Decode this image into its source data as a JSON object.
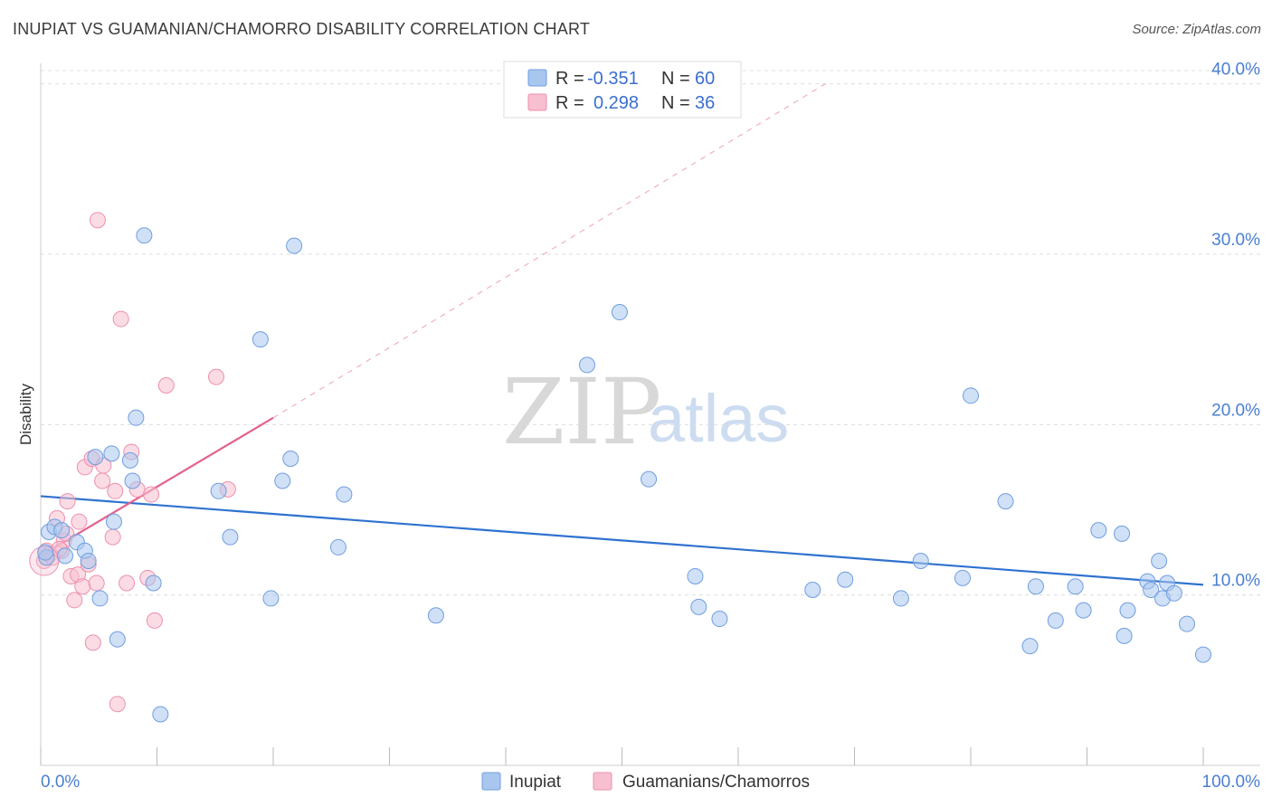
{
  "title": "INUPIAT VS GUAMANIAN/CHAMORRO DISABILITY CORRELATION CHART",
  "source": "Source: ZipAtlas.com",
  "watermark": {
    "zip": "ZIP",
    "atlas": "atlas"
  },
  "colors": {
    "blue_fill": "#a9c6ef",
    "blue_stroke": "#6f9ee0",
    "blue_line": "#2f72d0",
    "pink_fill": "#f7bfd0",
    "pink_stroke": "#ee8fae",
    "pink_line": "#e3628e",
    "grid": "#dddddd",
    "axis_text": "#4a7fd0"
  },
  "legend": {
    "rows": [
      {
        "r_label": "R =",
        "r_value": "-0.351",
        "n_label": "N =",
        "n_value": "60"
      },
      {
        "r_label": "R =",
        "r_value": "0.298",
        "n_label": "N =",
        "n_value": "36"
      }
    ]
  },
  "bottom_legend": [
    "Inupiat",
    "Guamanians/Chamorros"
  ],
  "chart_data": {
    "type": "scatter",
    "title": "INUPIAT VS GUAMANIAN/CHAMORRO DISABILITY CORRELATION CHART",
    "xlabel": "",
    "ylabel": "Disability",
    "xlim": [
      0,
      100
    ],
    "ylim": [
      0,
      42
    ],
    "x_tick_labels": [
      "0.0%",
      "100.0%"
    ],
    "y_ticks": [
      10,
      20,
      30,
      40
    ],
    "y_tick_labels": [
      "10.0%",
      "20.0%",
      "30.0%",
      "40.0%"
    ],
    "series": [
      {
        "name": "Inupiat",
        "r": -0.351,
        "n": 60,
        "trend": {
          "x": [
            0,
            100
          ],
          "y": [
            15.8,
            10.6
          ],
          "dashed": false
        },
        "points": [
          {
            "x": 0.5,
            "y": 12.2
          },
          {
            "x": 0.7,
            "y": 13.7
          },
          {
            "x": 1.2,
            "y": 14.0
          },
          {
            "x": 1.8,
            "y": 13.8
          },
          {
            "x": 2.1,
            "y": 12.3
          },
          {
            "x": 3.1,
            "y": 13.1
          },
          {
            "x": 3.8,
            "y": 12.6
          },
          {
            "x": 4.1,
            "y": 12.0
          },
          {
            "x": 5.1,
            "y": 9.8
          },
          {
            "x": 4.7,
            "y": 18.1
          },
          {
            "x": 6.1,
            "y": 18.3
          },
          {
            "x": 6.3,
            "y": 14.3
          },
          {
            "x": 6.6,
            "y": 7.4
          },
          {
            "x": 7.7,
            "y": 17.9
          },
          {
            "x": 7.9,
            "y": 16.7
          },
          {
            "x": 8.2,
            "y": 20.4
          },
          {
            "x": 8.9,
            "y": 31.1
          },
          {
            "x": 9.7,
            "y": 10.7
          },
          {
            "x": 10.3,
            "y": 3.0
          },
          {
            "x": 15.3,
            "y": 16.1
          },
          {
            "x": 16.3,
            "y": 13.4
          },
          {
            "x": 18.9,
            "y": 25.0
          },
          {
            "x": 19.8,
            "y": 9.8
          },
          {
            "x": 20.8,
            "y": 16.7
          },
          {
            "x": 21.5,
            "y": 18.0
          },
          {
            "x": 21.8,
            "y": 30.5
          },
          {
            "x": 25.6,
            "y": 12.8
          },
          {
            "x": 26.1,
            "y": 15.9
          },
          {
            "x": 34.0,
            "y": 8.8
          },
          {
            "x": 47.0,
            "y": 23.5
          },
          {
            "x": 49.8,
            "y": 26.6
          },
          {
            "x": 52.3,
            "y": 16.8
          },
          {
            "x": 56.3,
            "y": 11.1
          },
          {
            "x": 56.6,
            "y": 9.3
          },
          {
            "x": 58.4,
            "y": 8.6
          },
          {
            "x": 66.4,
            "y": 10.3
          },
          {
            "x": 69.2,
            "y": 10.9
          },
          {
            "x": 74.0,
            "y": 9.8
          },
          {
            "x": 75.7,
            "y": 12.0
          },
          {
            "x": 79.3,
            "y": 11.0
          },
          {
            "x": 80.0,
            "y": 21.7
          },
          {
            "x": 83.0,
            "y": 15.5
          },
          {
            "x": 85.1,
            "y": 7.0
          },
          {
            "x": 85.6,
            "y": 10.5
          },
          {
            "x": 87.3,
            "y": 8.5
          },
          {
            "x": 89.0,
            "y": 10.5
          },
          {
            "x": 89.7,
            "y": 9.1
          },
          {
            "x": 91.0,
            "y": 13.8
          },
          {
            "x": 93.0,
            "y": 13.6
          },
          {
            "x": 93.2,
            "y": 7.6
          },
          {
            "x": 93.5,
            "y": 9.1
          },
          {
            "x": 95.2,
            "y": 10.8
          },
          {
            "x": 95.5,
            "y": 10.3
          },
          {
            "x": 96.2,
            "y": 12.0
          },
          {
            "x": 96.5,
            "y": 9.8
          },
          {
            "x": 96.9,
            "y": 10.7
          },
          {
            "x": 97.5,
            "y": 10.1
          },
          {
            "x": 98.6,
            "y": 8.3
          },
          {
            "x": 100.0,
            "y": 6.5
          },
          {
            "x": 0.4,
            "y": 12.5
          }
        ]
      },
      {
        "name": "Guamanians/Chamorros",
        "r": 0.298,
        "n": 36,
        "trend": {
          "x": [
            0,
            20
          ],
          "y": [
            12.3,
            20.4
          ],
          "dashed_extension": {
            "x": [
              20,
              67.5
            ],
            "y": [
              20.4,
              40.0
            ]
          }
        },
        "points": [
          {
            "x": 0.3,
            "y": 12.0
          },
          {
            "x": 0.5,
            "y": 12.6
          },
          {
            "x": 0.8,
            "y": 12.4
          },
          {
            "x": 1.4,
            "y": 14.5
          },
          {
            "x": 1.8,
            "y": 12.6
          },
          {
            "x": 2.0,
            "y": 13.2
          },
          {
            "x": 2.3,
            "y": 15.5
          },
          {
            "x": 2.6,
            "y": 11.1
          },
          {
            "x": 2.9,
            "y": 9.7
          },
          {
            "x": 3.2,
            "y": 11.2
          },
          {
            "x": 3.3,
            "y": 14.3
          },
          {
            "x": 3.6,
            "y": 10.5
          },
          {
            "x": 3.8,
            "y": 17.5
          },
          {
            "x": 4.1,
            "y": 11.8
          },
          {
            "x": 4.4,
            "y": 18.0
          },
          {
            "x": 4.5,
            "y": 7.2
          },
          {
            "x": 4.8,
            "y": 10.7
          },
          {
            "x": 5.3,
            "y": 16.7
          },
          {
            "x": 5.4,
            "y": 17.6
          },
          {
            "x": 4.9,
            "y": 32.0
          },
          {
            "x": 6.2,
            "y": 13.4
          },
          {
            "x": 6.4,
            "y": 16.1
          },
          {
            "x": 6.6,
            "y": 3.6
          },
          {
            "x": 6.9,
            "y": 26.2
          },
          {
            "x": 7.4,
            "y": 10.7
          },
          {
            "x": 7.8,
            "y": 18.4
          },
          {
            "x": 8.3,
            "y": 16.2
          },
          {
            "x": 9.2,
            "y": 11.0
          },
          {
            "x": 9.5,
            "y": 15.9
          },
          {
            "x": 9.8,
            "y": 8.5
          },
          {
            "x": 10.8,
            "y": 22.3
          },
          {
            "x": 15.1,
            "y": 22.8
          },
          {
            "x": 16.1,
            "y": 16.2
          },
          {
            "x": 1.0,
            "y": 12.2
          },
          {
            "x": 2.2,
            "y": 13.6
          },
          {
            "x": 1.6,
            "y": 12.7
          }
        ]
      }
    ]
  }
}
